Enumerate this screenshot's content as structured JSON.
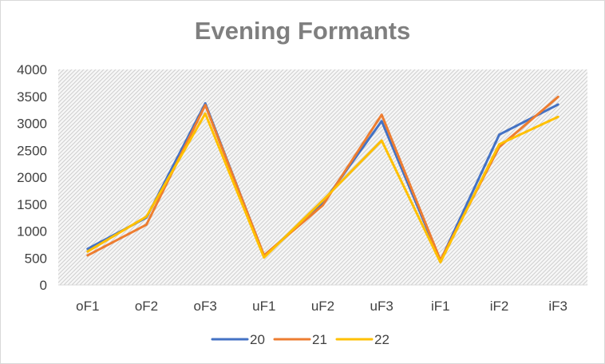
{
  "chart_data": {
    "type": "line",
    "title": "Evening Formants",
    "categories": [
      "oF1",
      "oF2",
      "oF3",
      "uF1",
      "uF2",
      "uF3",
      "iF1",
      "iF2",
      "iF3"
    ],
    "ylim": [
      0,
      4000
    ],
    "yticks": [
      0,
      500,
      1000,
      1500,
      2000,
      2500,
      3000,
      3500,
      4000
    ],
    "grid": false,
    "plot_background": "hatched",
    "legend_position": "bottom",
    "series": [
      {
        "name": "20",
        "color": "#4472c4",
        "values": [
          670,
          1250,
          3370,
          540,
          1520,
          3040,
          450,
          2790,
          3350
        ]
      },
      {
        "name": "21",
        "color": "#ed7d31",
        "values": [
          550,
          1120,
          3340,
          550,
          1480,
          3160,
          460,
          2560,
          3490
        ]
      },
      {
        "name": "22",
        "color": "#ffc000",
        "values": [
          620,
          1270,
          3180,
          510,
          1570,
          2680,
          420,
          2610,
          3120
        ]
      }
    ]
  }
}
